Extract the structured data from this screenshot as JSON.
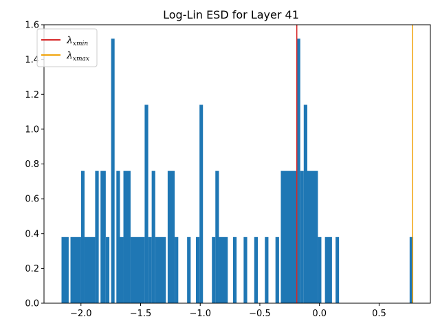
{
  "chart_data": {
    "type": "bar",
    "title": "Log-Lin ESD for Layer 41",
    "xlabel": "",
    "ylabel": "",
    "xlim": [
      -2.31,
      0.93
    ],
    "ylim": [
      0,
      1.6
    ],
    "xticks": [
      -2.0,
      -1.5,
      -1.0,
      -0.5,
      0.0,
      0.5
    ],
    "xtick_labels": [
      "−2.0",
      "−1.5",
      "−1.0",
      "−0.5",
      "0.0",
      "0.5"
    ],
    "yticks": [
      0.0,
      0.2,
      0.4,
      0.6,
      0.8,
      1.0,
      1.2,
      1.4,
      1.6
    ],
    "ytick_labels": [
      "0.0",
      "0.2",
      "0.4",
      "0.6",
      "0.8",
      "1.0",
      "1.2",
      "1.4",
      "1.6"
    ],
    "grid": false,
    "bar_color": "#1f77b4",
    "bin_width": 0.02965,
    "bins": [
      {
        "x0": -2.163,
        "x1": -2.103,
        "h": 0.38
      },
      {
        "x0": -2.088,
        "x1": -1.999,
        "h": 0.38
      },
      {
        "x0": -1.999,
        "x1": -1.97,
        "h": 0.76
      },
      {
        "x0": -1.97,
        "x1": -1.881,
        "h": 0.38
      },
      {
        "x0": -1.881,
        "x1": -1.851,
        "h": 0.76
      },
      {
        "x0": -1.836,
        "x1": -1.792,
        "h": 0.76
      },
      {
        "x0": -1.792,
        "x1": -1.762,
        "h": 0.38
      },
      {
        "x0": -1.747,
        "x1": -1.718,
        "h": 1.52
      },
      {
        "x0": -1.703,
        "x1": -1.673,
        "h": 0.76
      },
      {
        "x0": -1.673,
        "x1": -1.644,
        "h": 0.38
      },
      {
        "x0": -1.644,
        "x1": -1.584,
        "h": 0.76
      },
      {
        "x0": -1.584,
        "x1": -1.466,
        "h": 0.38
      },
      {
        "x0": -1.466,
        "x1": -1.436,
        "h": 1.14
      },
      {
        "x0": -1.436,
        "x1": -1.407,
        "h": 0.38
      },
      {
        "x0": -1.407,
        "x1": -1.377,
        "h": 0.76
      },
      {
        "x0": -1.377,
        "x1": -1.288,
        "h": 0.38
      },
      {
        "x0": -1.273,
        "x1": -1.214,
        "h": 0.76
      },
      {
        "x0": -1.214,
        "x1": -1.184,
        "h": 0.38
      },
      {
        "x0": -1.11,
        "x1": -1.08,
        "h": 0.38
      },
      {
        "x0": -1.036,
        "x1": -1.006,
        "h": 0.38
      },
      {
        "x0": -1.006,
        "x1": -0.977,
        "h": 1.14
      },
      {
        "x0": -0.902,
        "x1": -0.873,
        "h": 0.38
      },
      {
        "x0": -0.873,
        "x1": -0.843,
        "h": 0.76
      },
      {
        "x0": -0.843,
        "x1": -0.769,
        "h": 0.38
      },
      {
        "x0": -0.725,
        "x1": -0.695,
        "h": 0.38
      },
      {
        "x0": -0.636,
        "x1": -0.606,
        "h": 0.38
      },
      {
        "x0": -0.547,
        "x1": -0.517,
        "h": 0.38
      },
      {
        "x0": -0.458,
        "x1": -0.428,
        "h": 0.38
      },
      {
        "x0": -0.369,
        "x1": -0.339,
        "h": 0.38
      },
      {
        "x0": -0.324,
        "x1": -0.191,
        "h": 0.76
      },
      {
        "x0": -0.191,
        "x1": -0.161,
        "h": 1.52
      },
      {
        "x0": -0.161,
        "x1": -0.132,
        "h": 0.76
      },
      {
        "x0": -0.132,
        "x1": -0.102,
        "h": 1.14
      },
      {
        "x0": -0.102,
        "x1": -0.013,
        "h": 0.76
      },
      {
        "x0": -0.013,
        "x1": 0.016,
        "h": 0.38
      },
      {
        "x0": 0.046,
        "x1": 0.105,
        "h": 0.38
      },
      {
        "x0": 0.135,
        "x1": 0.164,
        "h": 0.38
      },
      {
        "x0": 0.756,
        "x1": 0.786,
        "h": 0.38
      }
    ],
    "vlines": [
      {
        "name": "λ",
        "sub": "xmin",
        "x": -0.19,
        "color": "#d62728"
      },
      {
        "name": "λ",
        "sub": "xmax",
        "x": 0.78,
        "color": "#f0a30a"
      }
    ],
    "legend_location": "top-left"
  }
}
